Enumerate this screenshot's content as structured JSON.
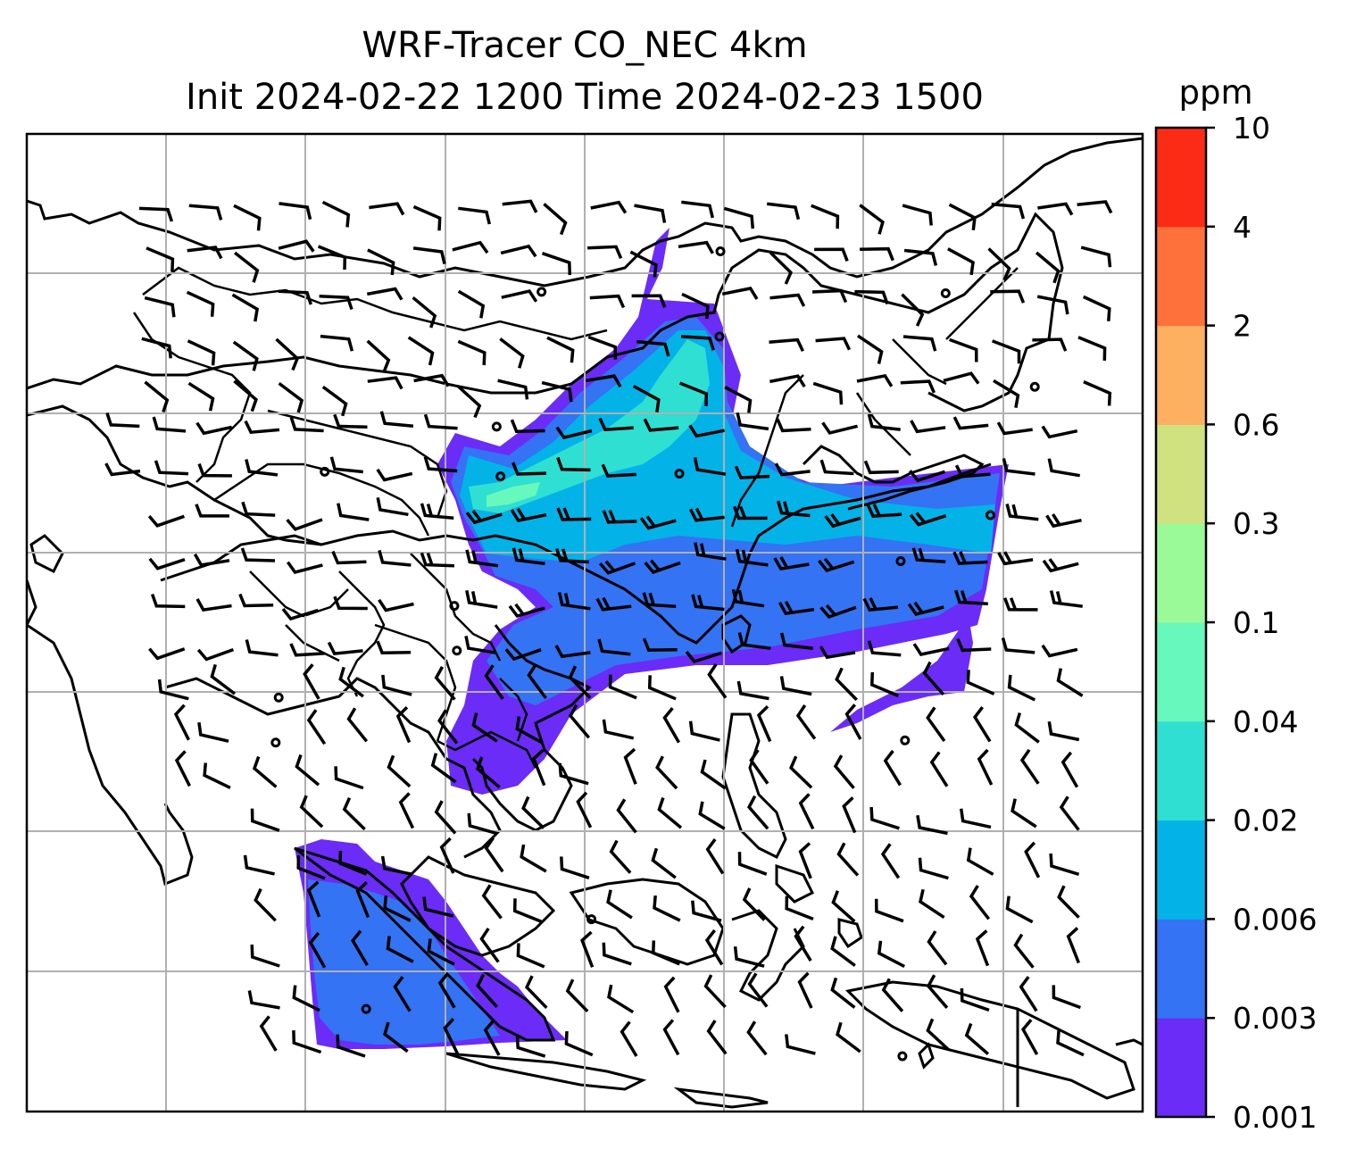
{
  "title_line1": "WRF-Tracer CO_NEC 4km",
  "title_line2": "Init 2024-02-22 1200 Time 2024-02-23 1500",
  "colorbar": {
    "unit": "ppm",
    "levels": [
      "0.001",
      "0.003",
      "0.006",
      "0.02",
      "0.04",
      "0.1",
      "0.3",
      "0.6",
      "2",
      "4",
      "10"
    ],
    "colors": [
      "#6a2cf6",
      "#3473f3",
      "#03b3e8",
      "#2fdfd2",
      "#67f8bd",
      "#9bfa98",
      "#d0e180",
      "#fdb05f",
      "#fe713a",
      "#fb2b16"
    ]
  },
  "chart_data": {
    "type": "map",
    "title": "WRF-Tracer CO_NEC 4km",
    "subtitle": "Init 2024-02-22 1200 Time 2024-02-23 1500",
    "field": "CO_NEC tracer concentration",
    "unit": "ppm",
    "contour_levels": [
      0.001,
      0.003,
      0.006,
      0.02,
      0.04,
      0.1,
      0.3,
      0.6,
      2,
      4,
      10
    ],
    "overlays": [
      "coastlines",
      "country borders",
      "wind barbs",
      "lat/lon gridlines"
    ],
    "grid": true,
    "colorbar_position": "right"
  }
}
